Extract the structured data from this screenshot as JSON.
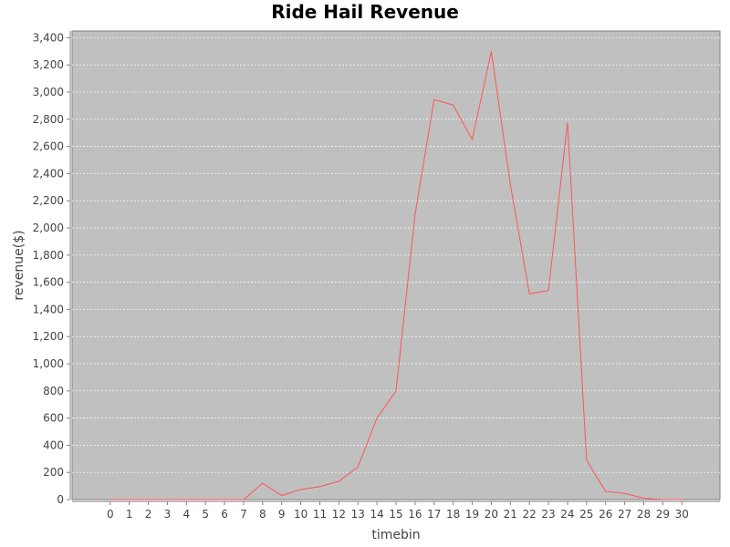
{
  "chart_data": {
    "type": "line",
    "title": "Ride Hail Revenue",
    "xlabel": "timebin",
    "ylabel": "revenue($)",
    "x": [
      0,
      1,
      2,
      3,
      4,
      5,
      6,
      7,
      8,
      9,
      10,
      11,
      12,
      13,
      14,
      15,
      16,
      17,
      18,
      19,
      20,
      21,
      22,
      23,
      24,
      25,
      26,
      27,
      28,
      29,
      30
    ],
    "series": [
      {
        "values": [
          0,
          0,
          0,
          0,
          0,
          0,
          0,
          0,
          120,
          30,
          75,
          95,
          135,
          240,
          600,
          800,
          2100,
          2945,
          2905,
          2650,
          3300,
          2320,
          1515,
          1540,
          2775,
          290,
          60,
          45,
          10,
          0,
          0
        ],
        "color": "#ff5555"
      }
    ],
    "xticks": [
      "0",
      "1",
      "2",
      "3",
      "4",
      "5",
      "6",
      "7",
      "8",
      "9",
      "10",
      "11",
      "12",
      "13",
      "14",
      "15",
      "16",
      "17",
      "18",
      "19",
      "20",
      "21",
      "22",
      "23",
      "24",
      "25",
      "26",
      "27",
      "28",
      "29",
      "30"
    ],
    "yticks": [
      "0",
      "200",
      "400",
      "600",
      "800",
      "1,000",
      "1,200",
      "1,400",
      "1,600",
      "1,800",
      "2,000",
      "2,200",
      "2,400",
      "2,600",
      "2,800",
      "3,000",
      "3,200",
      "3,400"
    ],
    "ytick_values": [
      0,
      200,
      400,
      600,
      800,
      1000,
      1200,
      1400,
      1600,
      1800,
      2000,
      2200,
      2400,
      2600,
      2800,
      3000,
      3200,
      3400
    ],
    "xlim": [
      -2,
      32
    ],
    "ylim": [
      0,
      3450
    ],
    "grid": true,
    "legend": "none",
    "plot_background": "#c0c0c0",
    "gridline_color": "#ffffff"
  }
}
